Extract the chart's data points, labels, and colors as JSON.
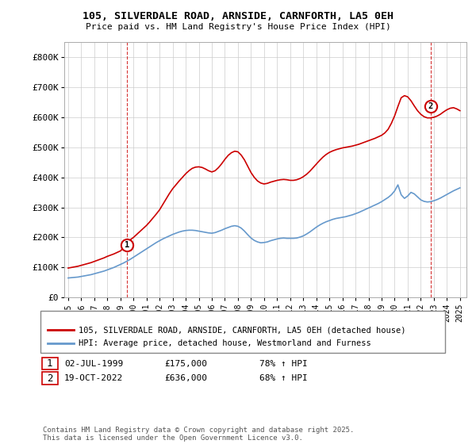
{
  "title": "105, SILVERDALE ROAD, ARNSIDE, CARNFORTH, LA5 0EH",
  "subtitle": "Price paid vs. HM Land Registry's House Price Index (HPI)",
  "ylim": [
    0,
    850000
  ],
  "yticks": [
    0,
    100000,
    200000,
    300000,
    400000,
    500000,
    600000,
    700000,
    800000
  ],
  "ytick_labels": [
    "£0",
    "£100K",
    "£200K",
    "£300K",
    "£400K",
    "£500K",
    "£600K",
    "£700K",
    "£800K"
  ],
  "red_color": "#cc0000",
  "blue_color": "#6699cc",
  "background_color": "#ffffff",
  "grid_color": "#cccccc",
  "legend_label_red": "105, SILVERDALE ROAD, ARNSIDE, CARNFORTH, LA5 0EH (detached house)",
  "legend_label_blue": "HPI: Average price, detached house, Westmorland and Furness",
  "note1_label": "1",
  "note1_date": "02-JUL-1999",
  "note1_price": "£175,000",
  "note1_hpi": "78% ↑ HPI",
  "note2_label": "2",
  "note2_date": "19-OCT-2022",
  "note2_price": "£636,000",
  "note2_hpi": "68% ↑ HPI",
  "footnote": "Contains HM Land Registry data © Crown copyright and database right 2025.\nThis data is licensed under the Open Government Licence v3.0.",
  "red_x": [
    1995.0,
    1995.25,
    1995.5,
    1995.75,
    1996.0,
    1996.25,
    1996.5,
    1996.75,
    1997.0,
    1997.25,
    1997.5,
    1997.75,
    1998.0,
    1998.25,
    1998.5,
    1998.75,
    1999.0,
    1999.25,
    1999.5,
    1999.75,
    2000.0,
    2000.25,
    2000.5,
    2000.75,
    2001.0,
    2001.25,
    2001.5,
    2001.75,
    2002.0,
    2002.25,
    2002.5,
    2002.75,
    2003.0,
    2003.25,
    2003.5,
    2003.75,
    2004.0,
    2004.25,
    2004.5,
    2004.75,
    2005.0,
    2005.25,
    2005.5,
    2005.75,
    2006.0,
    2006.25,
    2006.5,
    2006.75,
    2007.0,
    2007.25,
    2007.5,
    2007.75,
    2008.0,
    2008.25,
    2008.5,
    2008.75,
    2009.0,
    2009.25,
    2009.5,
    2009.75,
    2010.0,
    2010.25,
    2010.5,
    2010.75,
    2011.0,
    2011.25,
    2011.5,
    2011.75,
    2012.0,
    2012.25,
    2012.5,
    2012.75,
    2013.0,
    2013.25,
    2013.5,
    2013.75,
    2014.0,
    2014.25,
    2014.5,
    2014.75,
    2015.0,
    2015.25,
    2015.5,
    2015.75,
    2016.0,
    2016.25,
    2016.5,
    2016.75,
    2017.0,
    2017.25,
    2017.5,
    2017.75,
    2018.0,
    2018.25,
    2018.5,
    2018.75,
    2019.0,
    2019.25,
    2019.5,
    2019.75,
    2020.0,
    2020.25,
    2020.5,
    2020.75,
    2021.0,
    2021.25,
    2021.5,
    2021.75,
    2022.0,
    2022.25,
    2022.5,
    2022.75,
    2023.0,
    2023.25,
    2023.5,
    2023.75,
    2024.0,
    2024.25,
    2024.5,
    2024.75,
    2025.0
  ],
  "red_y": [
    98000,
    100000,
    102000,
    104000,
    107000,
    110000,
    113000,
    116000,
    120000,
    124000,
    128000,
    132000,
    137000,
    141000,
    145000,
    150000,
    155000,
    165000,
    175000,
    192000,
    200000,
    210000,
    220000,
    230000,
    240000,
    252000,
    265000,
    278000,
    292000,
    310000,
    328000,
    346000,
    362000,
    375000,
    388000,
    400000,
    412000,
    422000,
    430000,
    434000,
    435000,
    433000,
    428000,
    422000,
    418000,
    422000,
    432000,
    445000,
    460000,
    473000,
    482000,
    487000,
    485000,
    474000,
    458000,
    437000,
    416000,
    400000,
    388000,
    381000,
    378000,
    380000,
    384000,
    387000,
    390000,
    392000,
    393000,
    392000,
    390000,
    390000,
    392000,
    396000,
    402000,
    410000,
    420000,
    432000,
    444000,
    456000,
    467000,
    476000,
    483000,
    488000,
    492000,
    495000,
    498000,
    500000,
    502000,
    504000,
    507000,
    510000,
    514000,
    518000,
    522000,
    526000,
    530000,
    535000,
    540000,
    548000,
    560000,
    580000,
    605000,
    636000,
    665000,
    672000,
    668000,
    655000,
    638000,
    622000,
    610000,
    602000,
    598000,
    598000,
    600000,
    604000,
    610000,
    618000,
    625000,
    630000,
    632000,
    628000,
    622000
  ],
  "blue_x": [
    1995.0,
    1995.25,
    1995.5,
    1995.75,
    1996.0,
    1996.25,
    1996.5,
    1996.75,
    1997.0,
    1997.25,
    1997.5,
    1997.75,
    1998.0,
    1998.25,
    1998.5,
    1998.75,
    1999.0,
    1999.25,
    1999.5,
    1999.75,
    2000.0,
    2000.25,
    2000.5,
    2000.75,
    2001.0,
    2001.25,
    2001.5,
    2001.75,
    2002.0,
    2002.25,
    2002.5,
    2002.75,
    2003.0,
    2003.25,
    2003.5,
    2003.75,
    2004.0,
    2004.25,
    2004.5,
    2004.75,
    2005.0,
    2005.25,
    2005.5,
    2005.75,
    2006.0,
    2006.25,
    2006.5,
    2006.75,
    2007.0,
    2007.25,
    2007.5,
    2007.75,
    2008.0,
    2008.25,
    2008.5,
    2008.75,
    2009.0,
    2009.25,
    2009.5,
    2009.75,
    2010.0,
    2010.25,
    2010.5,
    2010.75,
    2011.0,
    2011.25,
    2011.5,
    2011.75,
    2012.0,
    2012.25,
    2012.5,
    2012.75,
    2013.0,
    2013.25,
    2013.5,
    2013.75,
    2014.0,
    2014.25,
    2014.5,
    2014.75,
    2015.0,
    2015.25,
    2015.5,
    2015.75,
    2016.0,
    2016.25,
    2016.5,
    2016.75,
    2017.0,
    2017.25,
    2017.5,
    2017.75,
    2018.0,
    2018.25,
    2018.5,
    2018.75,
    2019.0,
    2019.25,
    2019.5,
    2019.75,
    2020.0,
    2020.25,
    2020.5,
    2020.75,
    2021.0,
    2021.25,
    2021.5,
    2021.75,
    2022.0,
    2022.25,
    2022.5,
    2022.75,
    2023.0,
    2023.25,
    2023.5,
    2023.75,
    2024.0,
    2024.25,
    2024.5,
    2024.75,
    2025.0
  ],
  "blue_y": [
    65000,
    66000,
    67000,
    68000,
    70000,
    72000,
    74000,
    76000,
    79000,
    82000,
    85000,
    88000,
    92000,
    96000,
    100000,
    105000,
    110000,
    115000,
    121000,
    127000,
    134000,
    141000,
    148000,
    155000,
    162000,
    169000,
    176000,
    183000,
    189000,
    195000,
    200000,
    205000,
    210000,
    214000,
    218000,
    221000,
    223000,
    224000,
    224000,
    223000,
    221000,
    219000,
    217000,
    215000,
    214000,
    216000,
    220000,
    224000,
    229000,
    233000,
    237000,
    239000,
    237000,
    231000,
    221000,
    209000,
    198000,
    190000,
    185000,
    182000,
    183000,
    185000,
    189000,
    192000,
    195000,
    197000,
    198000,
    197000,
    197000,
    197000,
    198000,
    201000,
    205000,
    211000,
    218000,
    226000,
    234000,
    241000,
    247000,
    252000,
    256000,
    260000,
    263000,
    265000,
    267000,
    269000,
    272000,
    275000,
    279000,
    283000,
    288000,
    293000,
    298000,
    303000,
    308000,
    313000,
    319000,
    326000,
    333000,
    342000,
    355000,
    375000,
    342000,
    330000,
    338000,
    350000,
    345000,
    335000,
    325000,
    320000,
    318000,
    319000,
    322000,
    326000,
    331000,
    337000,
    343000,
    349000,
    355000,
    360000,
    365000
  ],
  "sale1_x": 1999.5,
  "sale1_y": 175000,
  "sale2_x": 2022.75,
  "sale2_y": 636000,
  "xlim_left": 1994.7,
  "xlim_right": 2025.5
}
